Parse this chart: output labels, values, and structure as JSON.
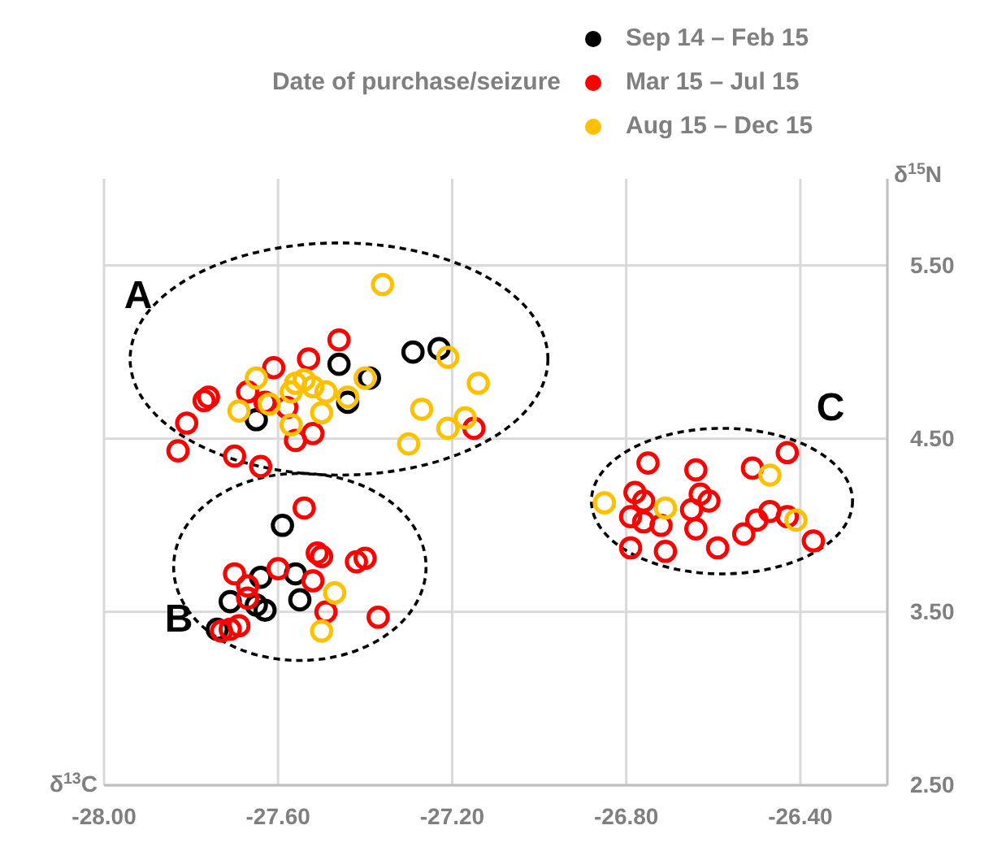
{
  "chart_data": {
    "type": "scatter",
    "xlabel": "δ$^{13}$C",
    "ylabel": "δ$^{15}$N",
    "legend_title": "Date of purchase/seizure",
    "legend": "top",
    "marker": "circle",
    "grid": true,
    "xlim": [
      -28.0,
      -26.2
    ],
    "xticks": [
      {
        "value": -28.0,
        "label": "-28.00"
      },
      {
        "value": -27.6,
        "label": "-27.60"
      },
      {
        "value": -27.2,
        "label": "-27.20"
      },
      {
        "value": -26.8,
        "label": "-26.80"
      },
      {
        "value": -26.4,
        "label": "-26.40"
      }
    ],
    "ylim": [
      2.5,
      6.0
    ],
    "yticks": [
      {
        "value": 2.5,
        "label": "2.50"
      },
      {
        "value": 3.5,
        "label": "3.50"
      },
      {
        "value": 4.5,
        "label": "4.50"
      },
      {
        "value": 5.5,
        "label": "5.50"
      }
    ],
    "annotations": [
      "A",
      "B",
      "C"
    ],
    "series": [
      {
        "name": "Sep 14 – Feb 15",
        "color": "#000000",
        "x": [
          -27.29,
          -27.23,
          -27.46,
          -27.39,
          -27.44,
          -27.65,
          -27.59,
          -27.64,
          -27.56,
          -27.55,
          -27.71,
          -27.63,
          -27.65,
          -27.74
        ],
        "values": [
          5.0,
          5.02,
          4.93,
          4.85,
          4.71,
          4.61,
          4.0,
          3.7,
          3.72,
          3.57,
          3.56,
          3.51,
          3.54,
          3.4
        ]
      },
      {
        "name": "Mar 15 – Jul 15",
        "color": "#ff0000",
        "x": [
          -27.46,
          -27.53,
          -27.61,
          -27.67,
          -27.76,
          -27.77,
          -27.63,
          -27.58,
          -27.81,
          -27.15,
          -27.52,
          -27.56,
          -27.83,
          -27.7,
          -27.64,
          -27.54,
          -27.51,
          -27.5,
          -27.42,
          -27.4,
          -27.7,
          -27.6,
          -27.52,
          -27.67,
          -27.67,
          -27.49,
          -27.37,
          -27.69,
          -27.71,
          -27.73,
          -26.75,
          -26.64,
          -26.51,
          -26.43,
          -26.78,
          -26.76,
          -26.79,
          -26.76,
          -26.72,
          -26.63,
          -26.61,
          -26.65,
          -26.64,
          -26.79,
          -26.71,
          -26.59,
          -26.53,
          -26.5,
          -26.47,
          -26.43,
          -26.37
        ],
        "values": [
          5.07,
          4.96,
          4.91,
          4.77,
          4.74,
          4.72,
          4.71,
          4.68,
          4.59,
          4.56,
          4.53,
          4.49,
          4.43,
          4.4,
          4.34,
          4.1,
          3.84,
          3.82,
          3.79,
          3.81,
          3.72,
          3.75,
          3.68,
          3.65,
          3.58,
          3.5,
          3.47,
          3.42,
          3.4,
          3.39,
          4.36,
          4.32,
          4.33,
          4.42,
          4.19,
          4.14,
          4.05,
          4.02,
          4.0,
          4.18,
          4.14,
          4.09,
          3.98,
          3.87,
          3.85,
          3.87,
          3.95,
          4.03,
          4.08,
          4.05,
          3.91
        ]
      },
      {
        "name": "Aug 15 – Dec 15",
        "color": "#ffc000",
        "x": [
          -27.36,
          -27.21,
          -27.14,
          -27.4,
          -27.56,
          -27.52,
          -27.49,
          -27.57,
          -27.54,
          -27.65,
          -27.44,
          -27.62,
          -27.69,
          -27.5,
          -27.57,
          -27.27,
          -27.17,
          -27.21,
          -27.3,
          -27.47,
          -27.5,
          -26.85,
          -26.71,
          -26.47,
          -26.41
        ],
        "values": [
          5.39,
          4.97,
          4.82,
          4.85,
          4.82,
          4.8,
          4.77,
          4.77,
          4.84,
          4.85,
          4.74,
          4.7,
          4.66,
          4.65,
          4.58,
          4.67,
          4.62,
          4.56,
          4.47,
          3.61,
          3.39,
          4.13,
          4.1,
          4.29,
          4.03
        ]
      }
    ]
  }
}
